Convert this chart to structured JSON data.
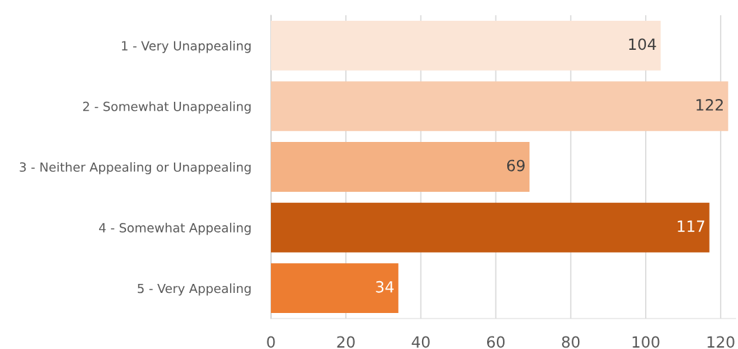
{
  "chart_data": {
    "type": "bar",
    "orientation": "horizontal",
    "categories": [
      "1 - Very Unappealing",
      "2 - Somewhat Unappealing",
      "3 - Neither Appealing or Unappealing",
      "4 - Somewhat Appealing",
      "5 - Very Appealing"
    ],
    "values": [
      104,
      122,
      69,
      117,
      34
    ],
    "colors": [
      "#fbe5d6",
      "#f8cbad",
      "#f4b183",
      "#c55a11",
      "#ed7d31"
    ],
    "xlim": [
      0,
      124
    ],
    "xticks": [
      0,
      20,
      40,
      60,
      80,
      100,
      120
    ],
    "grid": "x",
    "data_labels": true
  }
}
